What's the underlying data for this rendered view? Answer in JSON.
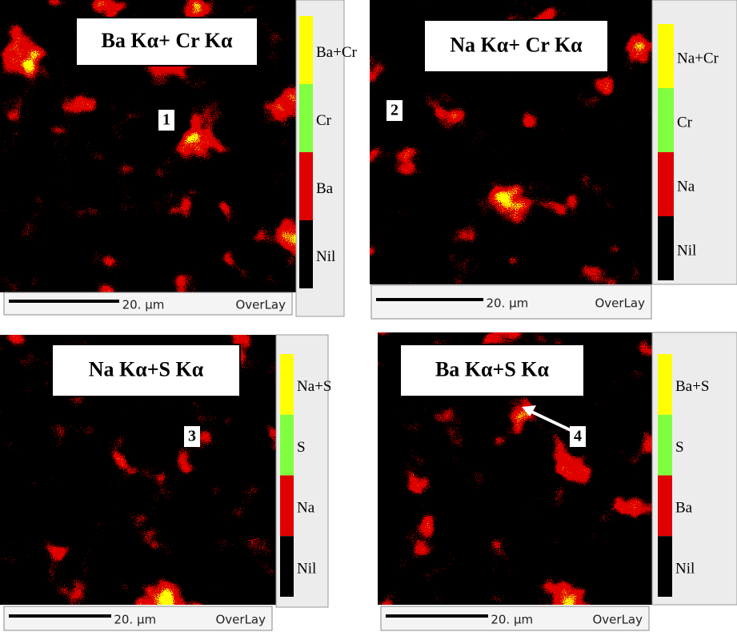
{
  "panels": [
    {
      "title": "Ba Kα+ Cr Kα",
      "label": "1",
      "legend": [
        {
          "label": "Ba+Cr",
          "color": "#ffff00"
        },
        {
          "label": "Cr",
          "color": "#80ff40"
        },
        {
          "label": "Ba",
          "color": "#e00000"
        },
        {
          "label": "Nil",
          "color": "#000000"
        }
      ],
      "scale": "20. µm",
      "mode": "OverLay"
    },
    {
      "title": "Na Kα+ Cr Kα",
      "label": "2",
      "legend": [
        {
          "label": "Na+Cr",
          "color": "#ffff00"
        },
        {
          "label": "Cr",
          "color": "#80ff40"
        },
        {
          "label": "Na",
          "color": "#e00000"
        },
        {
          "label": "Nil",
          "color": "#000000"
        }
      ],
      "scale": "20. µm",
      "mode": "OverLay"
    },
    {
      "title": "Na Kα+S Kα",
      "label": "3",
      "legend": [
        {
          "label": "Na+S",
          "color": "#ffff00"
        },
        {
          "label": "S",
          "color": "#80ff40"
        },
        {
          "label": "Na",
          "color": "#e00000"
        },
        {
          "label": "Nil",
          "color": "#000000"
        }
      ],
      "scale": "20. µm",
      "mode": "OverLay"
    },
    {
      "title": "Ba Kα+S Kα",
      "label": "4",
      "legend": [
        {
          "label": "Ba+S",
          "color": "#ffff00"
        },
        {
          "label": "S",
          "color": "#80ff40"
        },
        {
          "label": "Ba",
          "color": "#e00000"
        },
        {
          "label": "Nil",
          "color": "#000000"
        }
      ],
      "scale": "20. µm",
      "mode": "OverLay"
    }
  ]
}
